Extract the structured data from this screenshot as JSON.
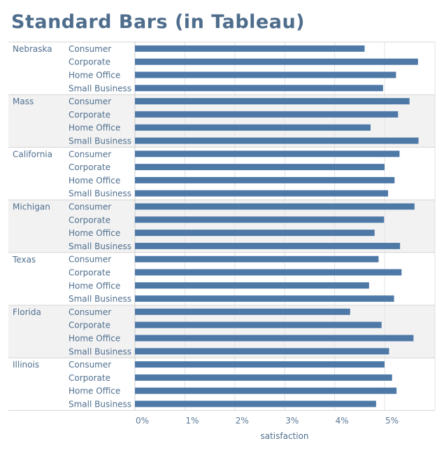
{
  "chart_data": {
    "type": "bar",
    "orientation": "horizontal",
    "title": "Standard Bars (in Tableau)",
    "xlabel": "satisfaction",
    "xlim": [
      0,
      5.95
    ],
    "xticks": [
      "0%",
      "1%",
      "2%",
      "3%",
      "4%",
      "5%"
    ],
    "grid": true,
    "row_banding": true,
    "bar_color": "#4e79a7",
    "segments": [
      "Consumer",
      "Corporate",
      "Home Office",
      "Small Business"
    ],
    "groups": [
      {
        "name": "Nebraska",
        "values": [
          4.6,
          5.67,
          5.23,
          4.97
        ]
      },
      {
        "name": "Mass",
        "values": [
          5.5,
          5.27,
          4.72,
          5.68
        ]
      },
      {
        "name": "California",
        "values": [
          5.3,
          5.0,
          5.2,
          5.07
        ]
      },
      {
        "name": "Michigan",
        "values": [
          5.6,
          4.99,
          4.8,
          5.31
        ]
      },
      {
        "name": "Texas",
        "values": [
          4.88,
          5.34,
          4.69,
          5.19
        ]
      },
      {
        "name": "Florida",
        "values": [
          4.31,
          4.94,
          5.58,
          5.09
        ]
      },
      {
        "name": "Illinois",
        "values": [
          5.0,
          5.15,
          5.24,
          4.83
        ]
      }
    ]
  }
}
